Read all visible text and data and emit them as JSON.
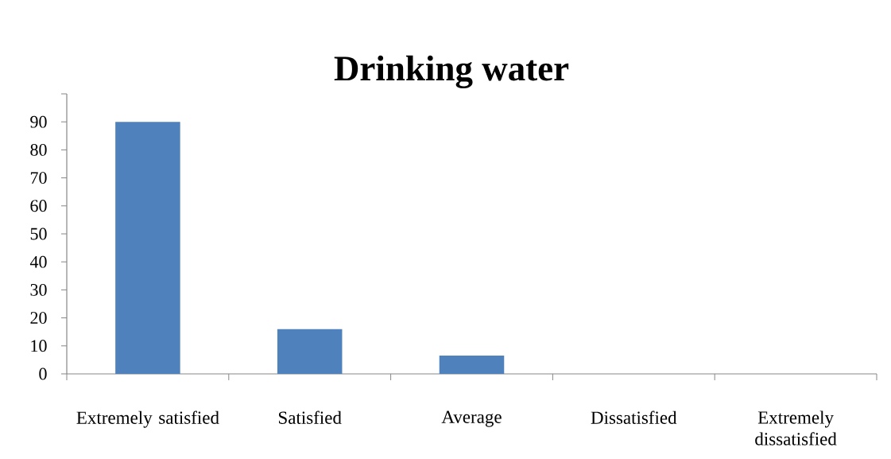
{
  "chart_data": {
    "type": "bar",
    "title": "Drinking water",
    "categories": [
      "Extremely satisfied",
      "Satisfied",
      "Average",
      "Dissatisfied",
      "Extremely dissatisfied"
    ],
    "values": [
      90,
      16,
      6.5,
      0,
      0
    ],
    "color": "#4f81bd",
    "ylim": [
      0,
      100
    ],
    "yticks": [
      0,
      10,
      20,
      30,
      40,
      50,
      60,
      70,
      80,
      90,
      {
        "value": 100,
        "label": null
      }
    ]
  }
}
